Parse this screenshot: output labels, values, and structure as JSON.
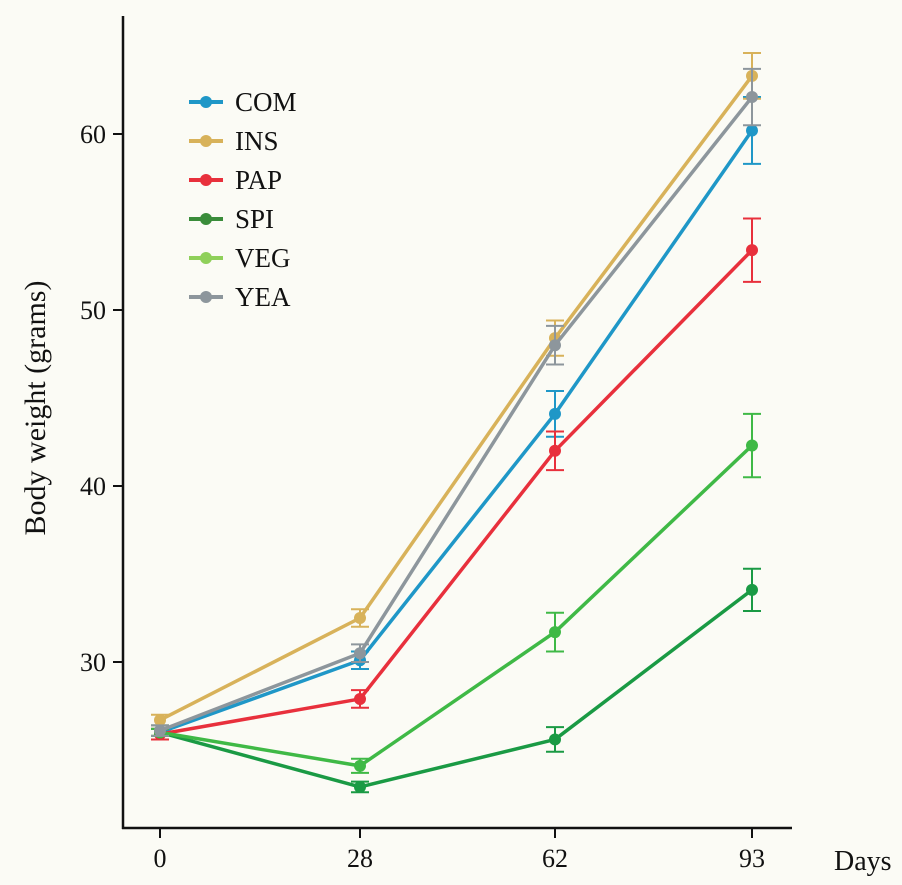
{
  "chart_data": {
    "type": "line",
    "title": "",
    "xlabel": "Days",
    "ylabel": "Body weight (grams)",
    "x": [
      0,
      28,
      62,
      93
    ],
    "x_ticks": [
      0,
      28,
      62,
      93
    ],
    "y_ticks": [
      30,
      40,
      50,
      60
    ],
    "ylim": [
      21,
      66.5
    ],
    "grid": false,
    "legend_position": "top-left",
    "series": [
      {
        "name": "COM",
        "color": "#1f97c7",
        "values": [
          26.0,
          30.1,
          44.1,
          60.2
        ],
        "errors": [
          0.4,
          0.5,
          1.3,
          1.9
        ]
      },
      {
        "name": "INS",
        "color": "#d8b25a",
        "values": [
          26.7,
          32.5,
          48.4,
          63.3
        ],
        "errors": [
          0.3,
          0.5,
          1.0,
          1.3
        ]
      },
      {
        "name": "PAP",
        "color": "#e8303c",
        "values": [
          25.9,
          27.9,
          42.0,
          53.4
        ],
        "errors": [
          0.3,
          0.5,
          1.1,
          1.8
        ]
      },
      {
        "name": "SPI",
        "color": "#1a9a44",
        "values": [
          26.0,
          22.9,
          25.6,
          34.1
        ],
        "errors": [
          0.2,
          0.3,
          0.7,
          1.2
        ]
      },
      {
        "name": "VEG",
        "color": "#3fb946",
        "values": [
          26.0,
          24.1,
          31.7,
          42.3
        ],
        "errors": [
          0.2,
          0.4,
          1.1,
          1.8
        ]
      },
      {
        "name": "YEA",
        "color": "#8d969c",
        "values": [
          26.1,
          30.5,
          48.0,
          62.1
        ],
        "errors": [
          0.3,
          0.5,
          1.1,
          1.6
        ]
      }
    ],
    "legend_swatch_colors": {
      "COM": "#1f97c7",
      "INS": "#d8b25a",
      "PAP": "#e8303c",
      "SPI": "#3a8c3a",
      "VEG": "#8fd05a",
      "YEA": "#8d969c"
    }
  }
}
